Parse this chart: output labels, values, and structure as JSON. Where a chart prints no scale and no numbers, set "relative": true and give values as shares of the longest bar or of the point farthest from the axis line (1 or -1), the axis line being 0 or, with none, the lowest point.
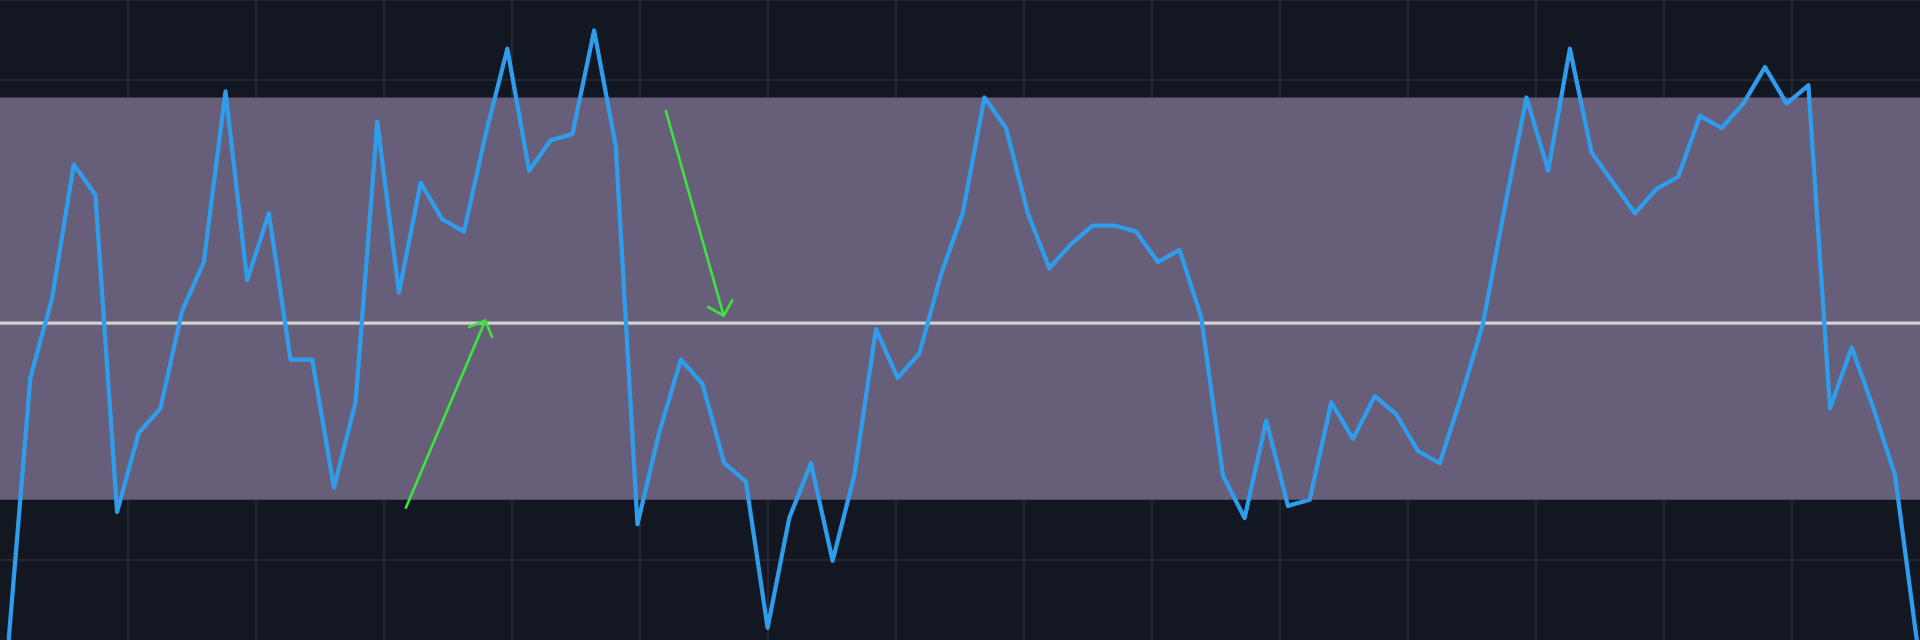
{
  "chart_data": {
    "type": "line",
    "relative": true,
    "grid": true,
    "tick_labels": false,
    "categories": [
      null,
      null,
      null,
      null,
      null,
      null,
      null,
      null,
      null,
      null,
      null,
      null,
      null,
      null,
      null,
      null,
      null,
      null,
      null,
      null,
      null,
      null,
      null,
      null,
      null,
      null,
      null,
      null,
      null,
      null,
      null,
      null,
      null,
      null,
      null,
      null,
      null,
      null,
      null,
      null,
      null,
      null,
      null,
      null,
      null,
      null,
      null,
      null,
      null,
      null,
      null,
      null,
      null,
      null,
      null,
      null,
      null,
      null,
      null,
      null,
      null,
      null,
      null,
      null,
      null,
      null,
      null,
      null,
      null,
      null,
      null,
      null,
      null,
      null,
      null,
      null,
      null,
      null,
      null,
      null,
      null,
      null,
      null,
      null,
      null,
      null,
      null,
      null,
      null
    ],
    "series": [
      {
        "color": "#2f9cec",
        "values": [
          0,
          0.43,
          0.56,
          0.78,
          0.73,
          0.21,
          0.34,
          0.38,
          0.54,
          0.62,
          0.9,
          0.59,
          0.7,
          0.46,
          0.46,
          0.25,
          0.39,
          0.85,
          0.57,
          0.75,
          0.69,
          0.67,
          0.83,
          0.97,
          0.77,
          0.82,
          0.83,
          1.0,
          0.81,
          0.19,
          0.34,
          0.46,
          0.42,
          0.29,
          0.26,
          0.02,
          0.2,
          0.29,
          0.13,
          0.27,
          0.51,
          0.43,
          0.47,
          0.6,
          0.7,
          0.89,
          0.84,
          0.7,
          0.61,
          0.65,
          0.68,
          0.68,
          0.67,
          0.62,
          0.64,
          0.53,
          0.27,
          0.2,
          0.36,
          0.22,
          0.23,
          0.39,
          0.33,
          0.4,
          0.37,
          0.31,
          0.29,
          0.4,
          0.52,
          0.71,
          0.89,
          0.77,
          0.97,
          0.8,
          0.75,
          0.7,
          0.74,
          0.76,
          0.86,
          0.84,
          0.88,
          0.94,
          0.88,
          0.91,
          0.38,
          0.48,
          0.38,
          0.27,
          0
        ]
      }
    ],
    "bands": [
      {
        "axis": "y",
        "from": 0.23,
        "to": 0.89,
        "color": "#675f7a"
      }
    ],
    "ref_lines": [
      {
        "axis": "y",
        "value": 0.52,
        "color": "#d0d0d0"
      }
    ]
  }
}
